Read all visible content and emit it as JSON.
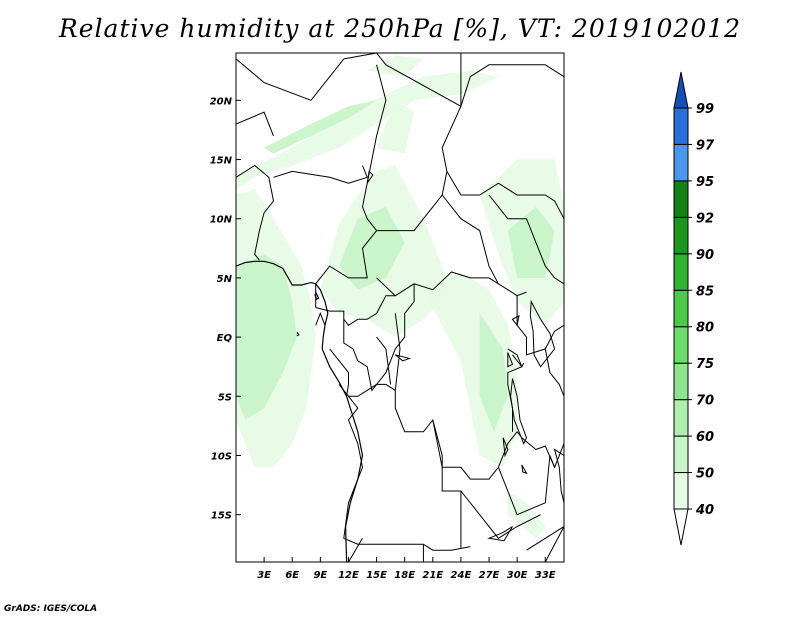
{
  "title": "Relative humidity at 250hPa [%], VT: 2019102012",
  "credit": "GrADS: IGES/COLA",
  "map": {
    "lat_range": [
      -19,
      24
    ],
    "lon_range": [
      0,
      35
    ],
    "lat_ticks": [
      {
        "value": 20,
        "label": "20N"
      },
      {
        "value": 15,
        "label": "15N"
      },
      {
        "value": 10,
        "label": "10N"
      },
      {
        "value": 5,
        "label": "5N"
      },
      {
        "value": 0,
        "label": "EQ"
      },
      {
        "value": -5,
        "label": "5S"
      },
      {
        "value": -10,
        "label": "10S"
      },
      {
        "value": -15,
        "label": "15S"
      }
    ],
    "lon_ticks": [
      {
        "value": 3,
        "label": "3E"
      },
      {
        "value": 6,
        "label": "6E"
      },
      {
        "value": 9,
        "label": "9E"
      },
      {
        "value": 12,
        "label": "12E"
      },
      {
        "value": 15,
        "label": "15E"
      },
      {
        "value": 18,
        "label": "18E"
      },
      {
        "value": 21,
        "label": "21E"
      },
      {
        "value": 24,
        "label": "24E"
      },
      {
        "value": 27,
        "label": "27E"
      },
      {
        "value": 30,
        "label": "30E"
      },
      {
        "value": 33,
        "label": "33E"
      }
    ]
  },
  "colorbar": {
    "levels": [
      "40",
      "50",
      "60",
      "70",
      "75",
      "80",
      "85",
      "90",
      "92",
      "95",
      "97",
      "99"
    ],
    "colors": [
      "#ffffff",
      "#e6fbe6",
      "#c8f4c8",
      "#aeeeae",
      "#8fe58f",
      "#6cdc6c",
      "#4cc84c",
      "#32b432",
      "#1e961e",
      "#148214",
      "#4a96eb",
      "#2870d7",
      "#1450b4"
    ]
  },
  "humid_regions": [
    {
      "level": 1,
      "pts": [
        [
          0,
          13.5
        ],
        [
          6,
          16
        ],
        [
          11,
          18.5
        ],
        [
          16,
          20.5
        ],
        [
          20,
          22
        ],
        [
          25,
          22.5
        ],
        [
          28,
          22
        ],
        [
          24,
          20.5
        ],
        [
          19,
          20
        ],
        [
          15,
          18
        ],
        [
          11,
          16
        ],
        [
          6,
          14.5
        ],
        [
          2,
          13.5
        ],
        [
          0,
          12.5
        ]
      ]
    },
    {
      "level": 2,
      "pts": [
        [
          3,
          16
        ],
        [
          8,
          18
        ],
        [
          12,
          19.5
        ],
        [
          15,
          20
        ],
        [
          12,
          18.5
        ],
        [
          8,
          17
        ],
        [
          4,
          15.5
        ]
      ]
    },
    {
      "level": 1,
      "pts": [
        [
          14,
          22.5
        ],
        [
          17,
          23.8
        ],
        [
          20,
          23.5
        ],
        [
          18,
          22
        ]
      ]
    },
    {
      "level": 1,
      "pts": [
        [
          0,
          12
        ],
        [
          2,
          12.5
        ],
        [
          4,
          10
        ],
        [
          5.5,
          8
        ],
        [
          7,
          6
        ],
        [
          8,
          3
        ],
        [
          8.5,
          0
        ],
        [
          8,
          -3
        ],
        [
          7.5,
          -6
        ],
        [
          6,
          -9
        ],
        [
          4,
          -11
        ],
        [
          2,
          -11
        ],
        [
          1,
          -9
        ],
        [
          0,
          -7
        ]
      ]
    },
    {
      "level": 2,
      "pts": [
        [
          0,
          6
        ],
        [
          3,
          7
        ],
        [
          5,
          6
        ],
        [
          6,
          3
        ],
        [
          6.5,
          0
        ],
        [
          5,
          -3
        ],
        [
          3,
          -6
        ],
        [
          1,
          -7
        ],
        [
          0,
          -5
        ]
      ]
    },
    {
      "level": 1,
      "pts": [
        [
          9,
          4
        ],
        [
          11,
          9.5
        ],
        [
          13,
          12
        ],
        [
          15,
          14
        ],
        [
          17,
          14.5
        ],
        [
          20,
          10
        ],
        [
          22,
          6
        ],
        [
          23,
          4
        ],
        [
          20,
          1.5
        ],
        [
          17,
          0
        ],
        [
          14,
          1.5
        ],
        [
          11,
          2
        ]
      ]
    },
    {
      "level": 2,
      "pts": [
        [
          11,
          6
        ],
        [
          13,
          10
        ],
        [
          16,
          11
        ],
        [
          18,
          8
        ],
        [
          16,
          5
        ],
        [
          13,
          4
        ]
      ]
    },
    {
      "level": 1,
      "pts": [
        [
          15,
          16
        ],
        [
          17,
          20
        ],
        [
          19,
          19
        ],
        [
          18,
          15.5
        ]
      ]
    },
    {
      "level": 1,
      "pts": [
        [
          20,
          4
        ],
        [
          24,
          5.5
        ],
        [
          27,
          4
        ],
        [
          29,
          1
        ],
        [
          30,
          -3
        ],
        [
          30,
          -8
        ],
        [
          28.5,
          -11
        ],
        [
          26,
          -10
        ],
        [
          25,
          -6
        ],
        [
          24,
          -2
        ],
        [
          22,
          1
        ]
      ]
    },
    {
      "level": 2,
      "pts": [
        [
          26,
          2
        ],
        [
          28.5,
          -1
        ],
        [
          29,
          -5
        ],
        [
          27.5,
          -8
        ],
        [
          26,
          -5
        ]
      ]
    },
    {
      "level": 1,
      "pts": [
        [
          26,
          12
        ],
        [
          30,
          15
        ],
        [
          34,
          15
        ],
        [
          35,
          11
        ],
        [
          35,
          3
        ],
        [
          33,
          1
        ],
        [
          30,
          3
        ],
        [
          28,
          7
        ]
      ]
    },
    {
      "level": 2,
      "pts": [
        [
          29,
          9
        ],
        [
          32,
          11
        ],
        [
          34,
          9
        ],
        [
          33,
          5
        ],
        [
          30,
          5
        ]
      ]
    },
    {
      "level": 1,
      "pts": [
        [
          29,
          -13
        ],
        [
          31,
          -14
        ],
        [
          33,
          -16
        ],
        [
          32,
          -17
        ],
        [
          29,
          -15
        ]
      ]
    }
  ],
  "borders": [
    [
      [
        0,
        23.5
      ],
      [
        3,
        21.5
      ],
      [
        8,
        20
      ],
      [
        11.5,
        23.5
      ]
    ],
    [
      [
        11.5,
        23.5
      ],
      [
        15,
        24
      ],
      [
        16,
        23
      ],
      [
        24,
        19.5
      ]
    ],
    [
      [
        24,
        19.5
      ],
      [
        24,
        24
      ]
    ],
    [
      [
        0,
        18
      ],
      [
        3,
        19
      ],
      [
        4,
        17
      ]
    ],
    [
      [
        0,
        13.5
      ],
      [
        2,
        14.5
      ],
      [
        3.5,
        13.5
      ],
      [
        4,
        11.5
      ],
      [
        3,
        10.5
      ],
      [
        2.5,
        9
      ],
      [
        2,
        7
      ],
      [
        2.5,
        6.5
      ]
    ],
    [
      [
        4,
        13.5
      ],
      [
        6,
        14
      ],
      [
        10,
        13.5
      ],
      [
        12,
        13
      ],
      [
        14,
        13.5
      ],
      [
        13.5,
        14.5
      ]
    ],
    [
      [
        15,
        23
      ],
      [
        16,
        20
      ],
      [
        15,
        17
      ],
      [
        14,
        13
      ],
      [
        13.5,
        11
      ],
      [
        14,
        10
      ],
      [
        15,
        9
      ],
      [
        13.5,
        7.5
      ],
      [
        14,
        5
      ],
      [
        12,
        5
      ],
      [
        10,
        6
      ],
      [
        8.5,
        4.5
      ],
      [
        8.5,
        2.5
      ]
    ],
    [
      [
        15,
        9
      ],
      [
        18,
        9
      ],
      [
        19,
        9
      ],
      [
        20,
        10
      ],
      [
        21,
        11
      ],
      [
        22,
        12
      ],
      [
        22.5,
        14
      ],
      [
        22,
        16
      ],
      [
        24,
        19.5
      ]
    ],
    [
      [
        15,
        5
      ],
      [
        17,
        3.5
      ],
      [
        19,
        4.5
      ],
      [
        21,
        4
      ],
      [
        23,
        5.5
      ],
      [
        25,
        5
      ],
      [
        27,
        5
      ],
      [
        28,
        4.5
      ],
      [
        29,
        4
      ],
      [
        30,
        3.5
      ],
      [
        31,
        3.8
      ]
    ],
    [
      [
        22,
        12
      ],
      [
        24,
        10
      ],
      [
        26,
        9
      ],
      [
        27,
        6
      ],
      [
        28,
        4.5
      ]
    ],
    [
      [
        22.5,
        14
      ],
      [
        24,
        12
      ],
      [
        26,
        12
      ],
      [
        28,
        13
      ],
      [
        30,
        12
      ],
      [
        33,
        12
      ],
      [
        34,
        11.5
      ],
      [
        35,
        10
      ]
    ],
    [
      [
        24,
        19.5
      ],
      [
        25,
        22
      ],
      [
        27,
        23
      ],
      [
        30,
        23
      ],
      [
        33,
        23
      ],
      [
        35,
        22
      ]
    ],
    [
      [
        27,
        12
      ],
      [
        29,
        10
      ],
      [
        31,
        10
      ],
      [
        32,
        8
      ],
      [
        33,
        6
      ],
      [
        34,
        5
      ],
      [
        35,
        4.5
      ]
    ],
    [
      [
        8.5,
        2.5
      ],
      [
        10,
        2.2
      ],
      [
        11.5,
        2.2
      ],
      [
        11.5,
        1.5
      ],
      [
        12,
        1
      ],
      [
        13,
        1.5
      ],
      [
        14,
        1.5
      ],
      [
        15,
        2
      ],
      [
        16,
        3.5
      ],
      [
        17,
        3.5
      ]
    ],
    [
      [
        11.5,
        1.5
      ],
      [
        11.5,
        -0.5
      ],
      [
        12.5,
        -1
      ],
      [
        13,
        -2
      ],
      [
        14,
        -2.5
      ],
      [
        14.5,
        -4.5
      ],
      [
        15,
        -4
      ]
    ],
    [
      [
        8.5,
        1
      ],
      [
        9,
        2
      ],
      [
        9.5,
        1
      ]
    ],
    [
      [
        11,
        -4
      ],
      [
        12,
        -5
      ],
      [
        13,
        -5
      ],
      [
        15,
        -4
      ],
      [
        16,
        -4
      ],
      [
        17,
        -4.5
      ],
      [
        17,
        -6
      ],
      [
        18,
        -8
      ],
      [
        20,
        -8
      ],
      [
        21,
        -7
      ],
      [
        22,
        -11
      ],
      [
        24,
        -11
      ],
      [
        25,
        -12
      ],
      [
        27,
        -12
      ],
      [
        28,
        -11
      ],
      [
        29,
        -9
      ],
      [
        30,
        -8
      ],
      [
        30.5,
        -8.5
      ]
    ],
    [
      [
        17,
        2
      ],
      [
        17.5,
        -1
      ],
      [
        17,
        -4.5
      ]
    ],
    [
      [
        15,
        -4
      ],
      [
        16,
        -3
      ],
      [
        17,
        -1
      ],
      [
        18,
        0
      ],
      [
        18,
        2
      ],
      [
        19,
        3
      ],
      [
        19,
        4.5
      ]
    ],
    [
      [
        29,
        -1
      ],
      [
        30,
        -1.5
      ],
      [
        30.5,
        -2.5
      ],
      [
        29,
        -3
      ],
      [
        29,
        -4
      ],
      [
        29.5,
        -6
      ],
      [
        29.5,
        -8
      ]
    ],
    [
      [
        30,
        3.5
      ],
      [
        30,
        1
      ],
      [
        31,
        0
      ],
      [
        31,
        -1.5
      ],
      [
        33,
        -1
      ],
      [
        34,
        0.5
      ],
      [
        35,
        1
      ]
    ],
    [
      [
        29.5,
        -1.5
      ],
      [
        30.5,
        -2.5
      ],
      [
        30.7,
        -2.2
      ]
    ],
    [
      [
        12,
        -5
      ],
      [
        13,
        -6
      ],
      [
        12,
        -7
      ],
      [
        13,
        -9
      ],
      [
        13.5,
        -11
      ],
      [
        12,
        -14
      ],
      [
        11.5,
        -17
      ],
      [
        13,
        -17.5
      ],
      [
        17,
        -17.5
      ],
      [
        20,
        -17.5
      ],
      [
        21,
        -18
      ],
      [
        23,
        -18
      ],
      [
        25,
        -17.7
      ]
    ],
    [
      [
        21,
        -7
      ],
      [
        22,
        -10
      ],
      [
        22,
        -13
      ],
      [
        24,
        -13
      ],
      [
        24,
        -17.8
      ]
    ],
    [
      [
        24,
        -13
      ],
      [
        28,
        -17
      ],
      [
        30,
        -16
      ],
      [
        32.5,
        -15
      ]
    ],
    [
      [
        28,
        -11
      ],
      [
        29,
        -13
      ],
      [
        30,
        -15
      ],
      [
        33,
        -14
      ],
      [
        33.5,
        -10
      ],
      [
        34,
        -11
      ]
    ],
    [
      [
        30.5,
        -8.5
      ],
      [
        32,
        -9.5
      ],
      [
        33,
        -9.2
      ],
      [
        34,
        -11
      ],
      [
        35,
        -9
      ]
    ],
    [
      [
        31,
        -18
      ],
      [
        33,
        -17
      ],
      [
        35,
        -16
      ],
      [
        33,
        -19
      ]
    ],
    [
      [
        20,
        -17.5
      ],
      [
        20,
        -19
      ]
    ],
    [
      [
        13.5,
        -17
      ],
      [
        12,
        -19
      ]
    ],
    [
      [
        33,
        -1
      ],
      [
        33.5,
        -3
      ],
      [
        34.5,
        -4
      ],
      [
        35,
        -5
      ]
    ],
    [
      [
        10,
        -1
      ],
      [
        12,
        -3
      ],
      [
        12,
        -4
      ],
      [
        11.8,
        -5
      ]
    ],
    [
      [
        15,
        0
      ],
      [
        16,
        -1
      ],
      [
        16.5,
        -4
      ]
    ]
  ],
  "coast": [
    [
      [
        0,
        6
      ],
      [
        1,
        6.3
      ],
      [
        2,
        6.4
      ],
      [
        3,
        6.4
      ],
      [
        4,
        6.2
      ],
      [
        5,
        5.8
      ],
      [
        6,
        4.4
      ],
      [
        7,
        4.4
      ],
      [
        8,
        4.6
      ],
      [
        8.5,
        4.5
      ],
      [
        9,
        4
      ],
      [
        9.5,
        3
      ],
      [
        9.8,
        2
      ],
      [
        9.5,
        1
      ],
      [
        9.3,
        0
      ],
      [
        9.2,
        -1
      ],
      [
        10,
        -2.5
      ],
      [
        11,
        -3.8
      ],
      [
        11.8,
        -5
      ],
      [
        12.2,
        -6
      ],
      [
        13,
        -8
      ],
      [
        13.5,
        -10
      ],
      [
        13,
        -12
      ],
      [
        12.2,
        -14
      ],
      [
        11.7,
        -16
      ],
      [
        11.8,
        -19
      ]
    ],
    [
      [
        8.5,
        3.8
      ],
      [
        8.8,
        3.3
      ],
      [
        8.6,
        3.2
      ],
      [
        8.4,
        3.6
      ]
    ],
    [
      [
        6.5,
        0.4
      ],
      [
        6.7,
        0.2
      ],
      [
        6.5,
        0.1
      ]
    ]
  ],
  "lakes": [
    [
      [
        31.5,
        3
      ],
      [
        32.5,
        1.5
      ],
      [
        33.5,
        0.3
      ],
      [
        34,
        -1
      ],
      [
        32.5,
        -2.5
      ],
      [
        31.8,
        -1.5
      ],
      [
        31.7,
        0.5
      ],
      [
        31.4,
        1.8
      ]
    ],
    [
      [
        29.5,
        -3.5
      ],
      [
        30,
        -5
      ],
      [
        30.3,
        -7
      ],
      [
        31,
        -8.5
      ],
      [
        30.7,
        -9
      ],
      [
        29.7,
        -7
      ],
      [
        29.3,
        -5
      ]
    ],
    [
      [
        34,
        -9.5
      ],
      [
        34.5,
        -11
      ],
      [
        34.7,
        -13
      ],
      [
        35,
        -14
      ],
      [
        35,
        -10
      ]
    ],
    [
      [
        29,
        -1.3
      ],
      [
        29.5,
        -2.3
      ],
      [
        29,
        -2.5
      ]
    ],
    [
      [
        28.5,
        -8.5
      ],
      [
        29,
        -9.5
      ],
      [
        28.7,
        -10
      ]
    ],
    [
      [
        27,
        -17
      ],
      [
        28.5,
        -16.5
      ],
      [
        29.5,
        -16
      ],
      [
        28.6,
        -17.2
      ]
    ],
    [
      [
        29.5,
        1.5
      ],
      [
        30,
        1
      ],
      [
        30.2,
        1.8
      ]
    ],
    [
      [
        17,
        -1.5
      ],
      [
        18.5,
        -1.8
      ],
      [
        17.8,
        -2
      ]
    ],
    [
      [
        30.5,
        -10.8
      ],
      [
        31,
        -11.5
      ],
      [
        30.6,
        -11.4
      ]
    ],
    [
      [
        14,
        13
      ],
      [
        14.6,
        13.7
      ],
      [
        14.2,
        14
      ]
    ]
  ]
}
